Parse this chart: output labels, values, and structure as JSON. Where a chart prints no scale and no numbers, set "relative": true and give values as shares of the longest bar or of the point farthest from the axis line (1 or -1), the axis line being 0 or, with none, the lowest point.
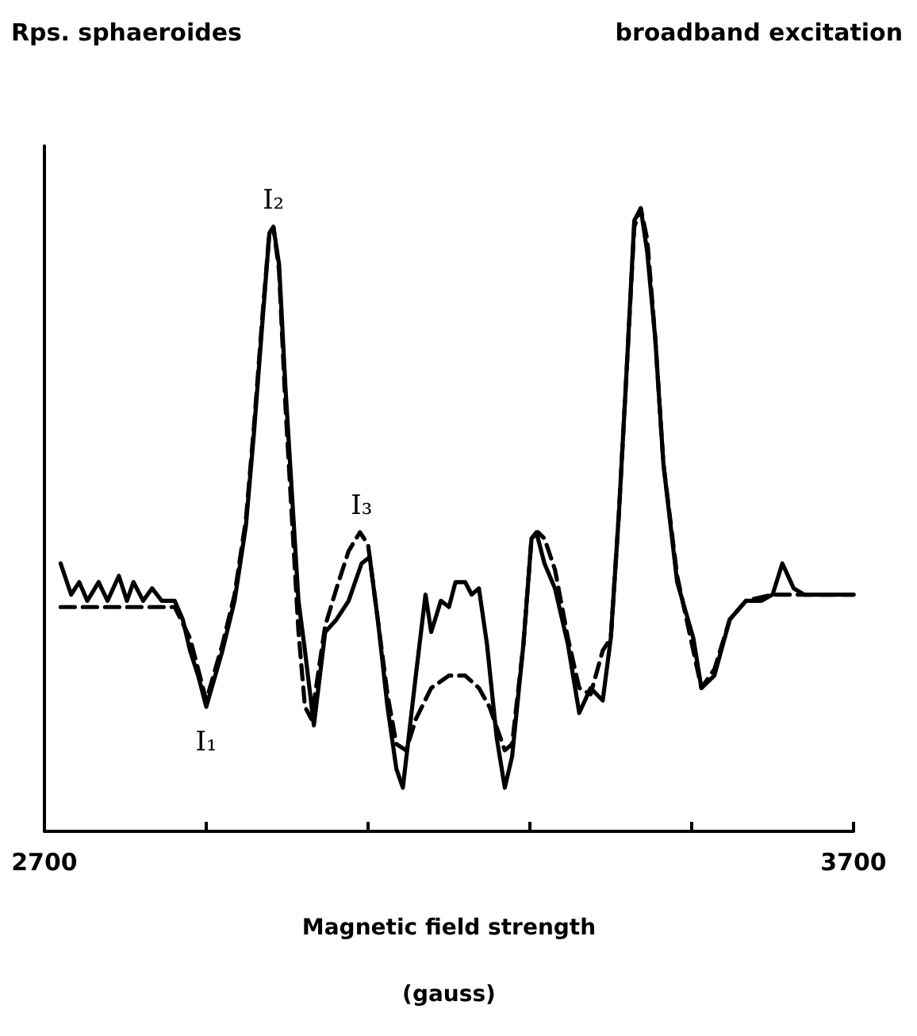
{
  "chart_data": {
    "type": "line",
    "title": "Rps. sphaeroides",
    "subtitle": "broadband excitation",
    "xlabel": "Magnetic field strength\n(gauss)",
    "relative": true,
    "marker": "none",
    "grid": false,
    "xlim": [
      2700,
      3700
    ],
    "xticks": [
      2700,
      {
        "value": 2900,
        "label": null
      },
      {
        "value": 3100,
        "label": null
      },
      {
        "value": 3300,
        "label": null
      },
      {
        "value": 3500,
        "label": null
      },
      3700
    ],
    "annotations": [
      {
        "text": "I₁",
        "x": 2900,
        "y": 0.2
      },
      {
        "text": "I₂",
        "x": 2983,
        "y": 0.97
      },
      {
        "text": "I₃",
        "x": 3092,
        "y": 0.48
      }
    ],
    "series": [
      {
        "color": "#000000",
        "line_style": "solid",
        "x": [
          2720,
          2733,
          2743,
          2753,
          2767,
          2778,
          2792,
          2802,
          2810,
          2822,
          2833,
          2845,
          2861,
          2871,
          2880,
          2890,
          2900,
          2920,
          2935,
          2949,
          2959,
          2969,
          2978,
          2983,
          2990,
          2998,
          3006,
          3014,
          3022,
          3033,
          3047,
          3061,
          3076,
          3092,
          3102,
          3112,
          3124,
          3135,
          3143,
          3159,
          3171,
          3178,
          3190,
          3200,
          3208,
          3220,
          3228,
          3237,
          3247,
          3259,
          3269,
          3278,
          3292,
          3302,
          3308,
          3318,
          3331,
          3347,
          3361,
          3375,
          3390,
          3400,
          3410,
          3420,
          3429,
          3437,
          3445,
          3455,
          3465,
          3482,
          3502,
          3512,
          3528,
          3547,
          3567,
          3586,
          3600,
          3612,
          3626,
          3639,
          3659,
          3679,
          3700
        ],
        "values": [
          0.43,
          0.38,
          0.4,
          0.37,
          0.4,
          0.37,
          0.41,
          0.37,
          0.4,
          0.37,
          0.39,
          0.37,
          0.37,
          0.34,
          0.29,
          0.25,
          0.2,
          0.29,
          0.37,
          0.49,
          0.64,
          0.81,
          0.96,
          0.97,
          0.91,
          0.71,
          0.54,
          0.37,
          0.29,
          0.17,
          0.32,
          0.34,
          0.37,
          0.43,
          0.44,
          0.34,
          0.2,
          0.1,
          0.07,
          0.25,
          0.38,
          0.32,
          0.37,
          0.36,
          0.4,
          0.4,
          0.38,
          0.39,
          0.3,
          0.15,
          0.07,
          0.12,
          0.3,
          0.47,
          0.48,
          0.43,
          0.39,
          0.3,
          0.19,
          0.23,
          0.21,
          0.31,
          0.51,
          0.75,
          0.98,
          1.0,
          0.93,
          0.79,
          0.59,
          0.4,
          0.31,
          0.23,
          0.25,
          0.34,
          0.37,
          0.37,
          0.38,
          0.43,
          0.39,
          0.38,
          0.38,
          0.38,
          0.38
        ]
      },
      {
        "color": "#000000",
        "line_style": "dashed",
        "x": [
          2720,
          2861,
          2880,
          2900,
          2920,
          2935,
          2949,
          2959,
          2969,
          2978,
          2983,
          2990,
          2998,
          3006,
          3014,
          3022,
          3030,
          3047,
          3061,
          3076,
          3090,
          3100,
          3112,
          3124,
          3135,
          3147,
          3159,
          3178,
          3200,
          3220,
          3237,
          3250,
          3269,
          3278,
          3292,
          3302,
          3310,
          3318,
          3331,
          3347,
          3361,
          3375,
          3390,
          3400,
          3410,
          3420,
          3429,
          3437,
          3445,
          3455,
          3465,
          3482,
          3502,
          3512,
          3528,
          3547,
          3567,
          3600,
          3650,
          3700
        ],
        "values": [
          0.36,
          0.36,
          0.31,
          0.21,
          0.3,
          0.38,
          0.5,
          0.65,
          0.82,
          0.96,
          0.97,
          0.9,
          0.68,
          0.5,
          0.32,
          0.2,
          0.18,
          0.33,
          0.39,
          0.45,
          0.48,
          0.46,
          0.34,
          0.22,
          0.14,
          0.13,
          0.18,
          0.23,
          0.25,
          0.25,
          0.23,
          0.2,
          0.13,
          0.14,
          0.3,
          0.47,
          0.48,
          0.47,
          0.42,
          0.31,
          0.23,
          0.22,
          0.29,
          0.31,
          0.51,
          0.75,
          0.97,
          1.0,
          0.95,
          0.79,
          0.59,
          0.41,
          0.29,
          0.23,
          0.26,
          0.34,
          0.37,
          0.38,
          0.38,
          0.38
        ]
      }
    ]
  }
}
